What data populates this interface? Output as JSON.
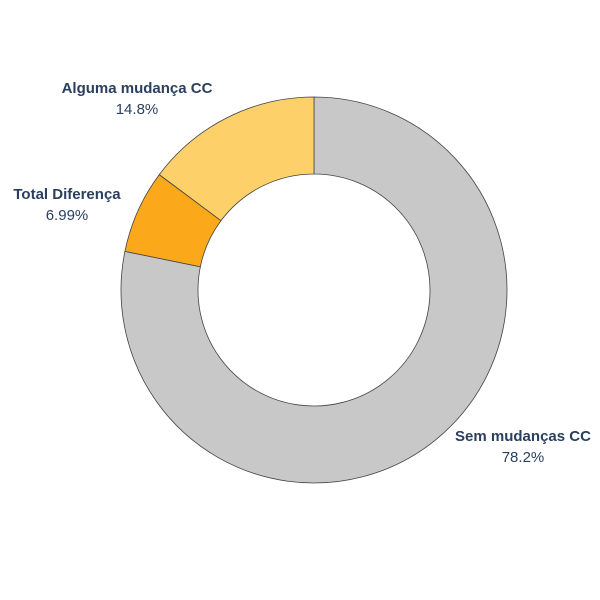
{
  "chart_data": {
    "type": "pie",
    "hole": true,
    "slices": [
      {
        "label": "Sem mudanças CC",
        "value": 78.2,
        "text": "78.2%",
        "color": "#c8c8c8"
      },
      {
        "label": "Total Diferença",
        "value": 6.99,
        "text": "6.99%",
        "color": "#fba81a"
      },
      {
        "label": "Alguma mudança CC",
        "value": 14.8,
        "text": "14.8%",
        "color": "#fed06a"
      }
    ]
  }
}
